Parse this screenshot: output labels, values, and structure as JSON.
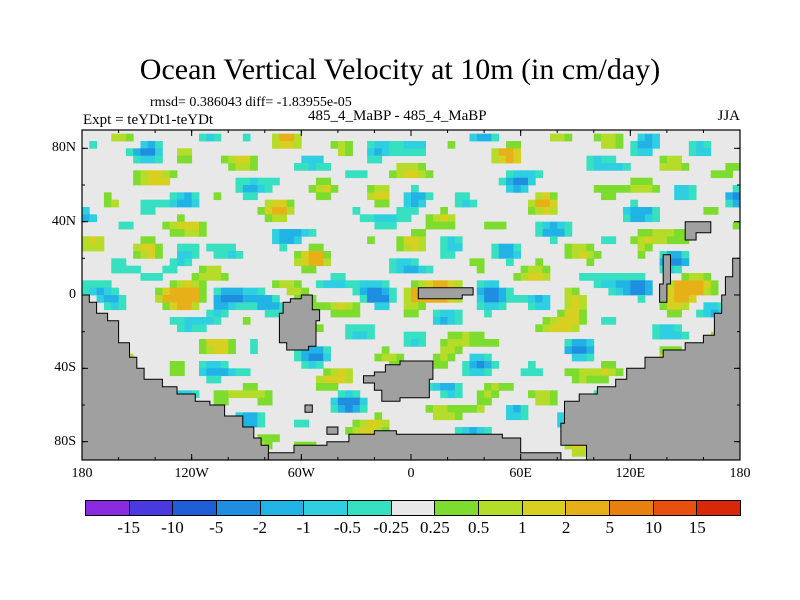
{
  "header": {
    "title": "Ocean Vertical Velocity at 10m (in cm/day)",
    "stats": "rmsd= 0.386043 diff= -1.83955e-05",
    "experiment": "Expt = teYDt1-teYDt",
    "subtitle": "485_4_MaBP - 485_4_MaBP",
    "season": "JJA"
  },
  "chart_data": {
    "type": "heatmap",
    "title": "Ocean Vertical Velocity at 10m (in cm/day)",
    "units": "cm/day",
    "xlabel": "",
    "ylabel": "",
    "xlim": [
      -180,
      180
    ],
    "ylim": [
      -90,
      90
    ],
    "x_ticks": [
      {
        "value": -180,
        "label": "180"
      },
      {
        "value": -120,
        "label": "120W"
      },
      {
        "value": -60,
        "label": "60W"
      },
      {
        "value": 0,
        "label": "0"
      },
      {
        "value": 60,
        "label": "60E"
      },
      {
        "value": 120,
        "label": "120E"
      },
      {
        "value": 180,
        "label": "180"
      }
    ],
    "y_ticks": [
      {
        "value": 80,
        "label": "80N"
      },
      {
        "value": 40,
        "label": "40N"
      },
      {
        "value": 0,
        "label": "0"
      },
      {
        "value": -40,
        "label": "40S"
      },
      {
        "value": -80,
        "label": "80S"
      }
    ],
    "levels": [
      "-15",
      "-10",
      "-5",
      "-2",
      "-1",
      "-0.5",
      "-0.25",
      "0.25",
      "0.5",
      "1",
      "2",
      "5",
      "10",
      "15"
    ],
    "colors": [
      "#8a2be2",
      "#4a38e0",
      "#1e5fd8",
      "#1f8ee0",
      "#22b3e6",
      "#2dcfe0",
      "#36e0c0",
      "#e8e8e8",
      "#7ddc2e",
      "#b4dc28",
      "#d8d020",
      "#e8b018",
      "#e88010",
      "#e85010",
      "#d82808"
    ],
    "land_color": "#a0a0a0",
    "land_polygons": [
      {
        "name": "south-america",
        "points": [
          [
            -180,
            0
          ],
          [
            -176,
            0
          ],
          [
            -176,
            -4
          ],
          [
            -172,
            -4
          ],
          [
            -172,
            -10
          ],
          [
            -166,
            -10
          ],
          [
            -166,
            -14
          ],
          [
            -160,
            -14
          ],
          [
            -160,
            -26
          ],
          [
            -154,
            -26
          ],
          [
            -154,
            -34
          ],
          [
            -150,
            -34
          ],
          [
            -150,
            -40
          ],
          [
            -146,
            -40
          ],
          [
            -146,
            -46
          ],
          [
            -136,
            -46
          ],
          [
            -136,
            -50
          ],
          [
            -128,
            -50
          ],
          [
            -128,
            -54
          ],
          [
            -118,
            -54
          ],
          [
            -118,
            -58
          ],
          [
            -110,
            -58
          ],
          [
            -110,
            -60
          ],
          [
            -102,
            -60
          ],
          [
            -102,
            -66
          ],
          [
            -92,
            -66
          ],
          [
            -92,
            -72
          ],
          [
            -86,
            -72
          ],
          [
            -86,
            -78
          ],
          [
            -82,
            -78
          ],
          [
            -82,
            -82
          ],
          [
            -78,
            -82
          ],
          [
            -78,
            -90
          ],
          [
            -180,
            -90
          ]
        ]
      },
      {
        "name": "africa",
        "points": [
          [
            -70,
            -4
          ],
          [
            -66,
            -4
          ],
          [
            -66,
            -2
          ],
          [
            -60,
            -2
          ],
          [
            -60,
            0
          ],
          [
            -54,
            0
          ],
          [
            -54,
            -8
          ],
          [
            -50,
            -8
          ],
          [
            -50,
            -14
          ],
          [
            -52,
            -14
          ],
          [
            -52,
            -28
          ],
          [
            -56,
            -28
          ],
          [
            -56,
            -30
          ],
          [
            -68,
            -30
          ],
          [
            -68,
            -26
          ],
          [
            -72,
            -26
          ],
          [
            -72,
            -10
          ],
          [
            -70,
            -10
          ]
        ]
      },
      {
        "name": "south-island",
        "points": [
          [
            -20,
            -42
          ],
          [
            -14,
            -42
          ],
          [
            -14,
            -38
          ],
          [
            -6,
            -38
          ],
          [
            -6,
            -36
          ],
          [
            12,
            -36
          ],
          [
            12,
            -46
          ],
          [
            10,
            -46
          ],
          [
            10,
            -56
          ],
          [
            -6,
            -56
          ],
          [
            -6,
            -58
          ],
          [
            -16,
            -58
          ],
          [
            -16,
            -52
          ],
          [
            -20,
            -52
          ],
          [
            -20,
            -48
          ],
          [
            -26,
            -48
          ],
          [
            -26,
            -44
          ],
          [
            -20,
            -44
          ]
        ]
      },
      {
        "name": "equator-strip",
        "points": [
          [
            4,
            4
          ],
          [
            34,
            4
          ],
          [
            34,
            0
          ],
          [
            28,
            0
          ],
          [
            28,
            -2
          ],
          [
            4,
            -2
          ]
        ]
      },
      {
        "name": "australia-antarctica",
        "points": [
          [
            180,
            20
          ],
          [
            176,
            20
          ],
          [
            176,
            10
          ],
          [
            172,
            10
          ],
          [
            172,
            0
          ],
          [
            170,
            0
          ],
          [
            170,
            -10
          ],
          [
            166,
            -10
          ],
          [
            166,
            -22
          ],
          [
            160,
            -22
          ],
          [
            160,
            -26
          ],
          [
            150,
            -26
          ],
          [
            150,
            -30
          ],
          [
            138,
            -30
          ],
          [
            138,
            -34
          ],
          [
            128,
            -34
          ],
          [
            128,
            -40
          ],
          [
            118,
            -40
          ],
          [
            118,
            -46
          ],
          [
            112,
            -46
          ],
          [
            112,
            -50
          ],
          [
            102,
            -50
          ],
          [
            102,
            -54
          ],
          [
            92,
            -54
          ],
          [
            92,
            -58
          ],
          [
            84,
            -58
          ],
          [
            84,
            -70
          ],
          [
            82,
            -70
          ],
          [
            82,
            -82
          ],
          [
            96,
            -82
          ],
          [
            96,
            -90
          ],
          [
            180,
            -90
          ]
        ]
      },
      {
        "name": "east-box",
        "points": [
          [
            150,
            40
          ],
          [
            164,
            40
          ],
          [
            164,
            34
          ],
          [
            156,
            34
          ],
          [
            156,
            30
          ],
          [
            150,
            30
          ]
        ]
      },
      {
        "name": "east-sliver",
        "points": [
          [
            138,
            22
          ],
          [
            142,
            22
          ],
          [
            142,
            6
          ],
          [
            140,
            6
          ],
          [
            140,
            -4
          ],
          [
            136,
            -4
          ],
          [
            136,
            6
          ],
          [
            138,
            6
          ]
        ]
      },
      {
        "name": "antarctic-ledge",
        "points": [
          [
            -34,
            -76
          ],
          [
            -20,
            -76
          ],
          [
            -20,
            -74
          ],
          [
            -8,
            -74
          ],
          [
            -8,
            -76
          ],
          [
            50,
            -76
          ],
          [
            50,
            -78
          ],
          [
            60,
            -78
          ],
          [
            60,
            -86
          ],
          [
            82,
            -86
          ],
          [
            82,
            -90
          ],
          [
            -78,
            -90
          ],
          [
            -78,
            -86
          ],
          [
            -64,
            -86
          ],
          [
            -64,
            -82
          ],
          [
            -46,
            -82
          ],
          [
            -46,
            -80
          ],
          [
            -34,
            -80
          ]
        ]
      },
      {
        "name": "small-isle-1",
        "points": [
          [
            -58,
            -60
          ],
          [
            -54,
            -60
          ],
          [
            -54,
            -64
          ],
          [
            -58,
            -64
          ]
        ]
      },
      {
        "name": "small-isle-2",
        "points": [
          [
            -46,
            -72
          ],
          [
            -40,
            -72
          ],
          [
            -40,
            -76
          ],
          [
            -46,
            -76
          ]
        ]
      }
    ]
  }
}
